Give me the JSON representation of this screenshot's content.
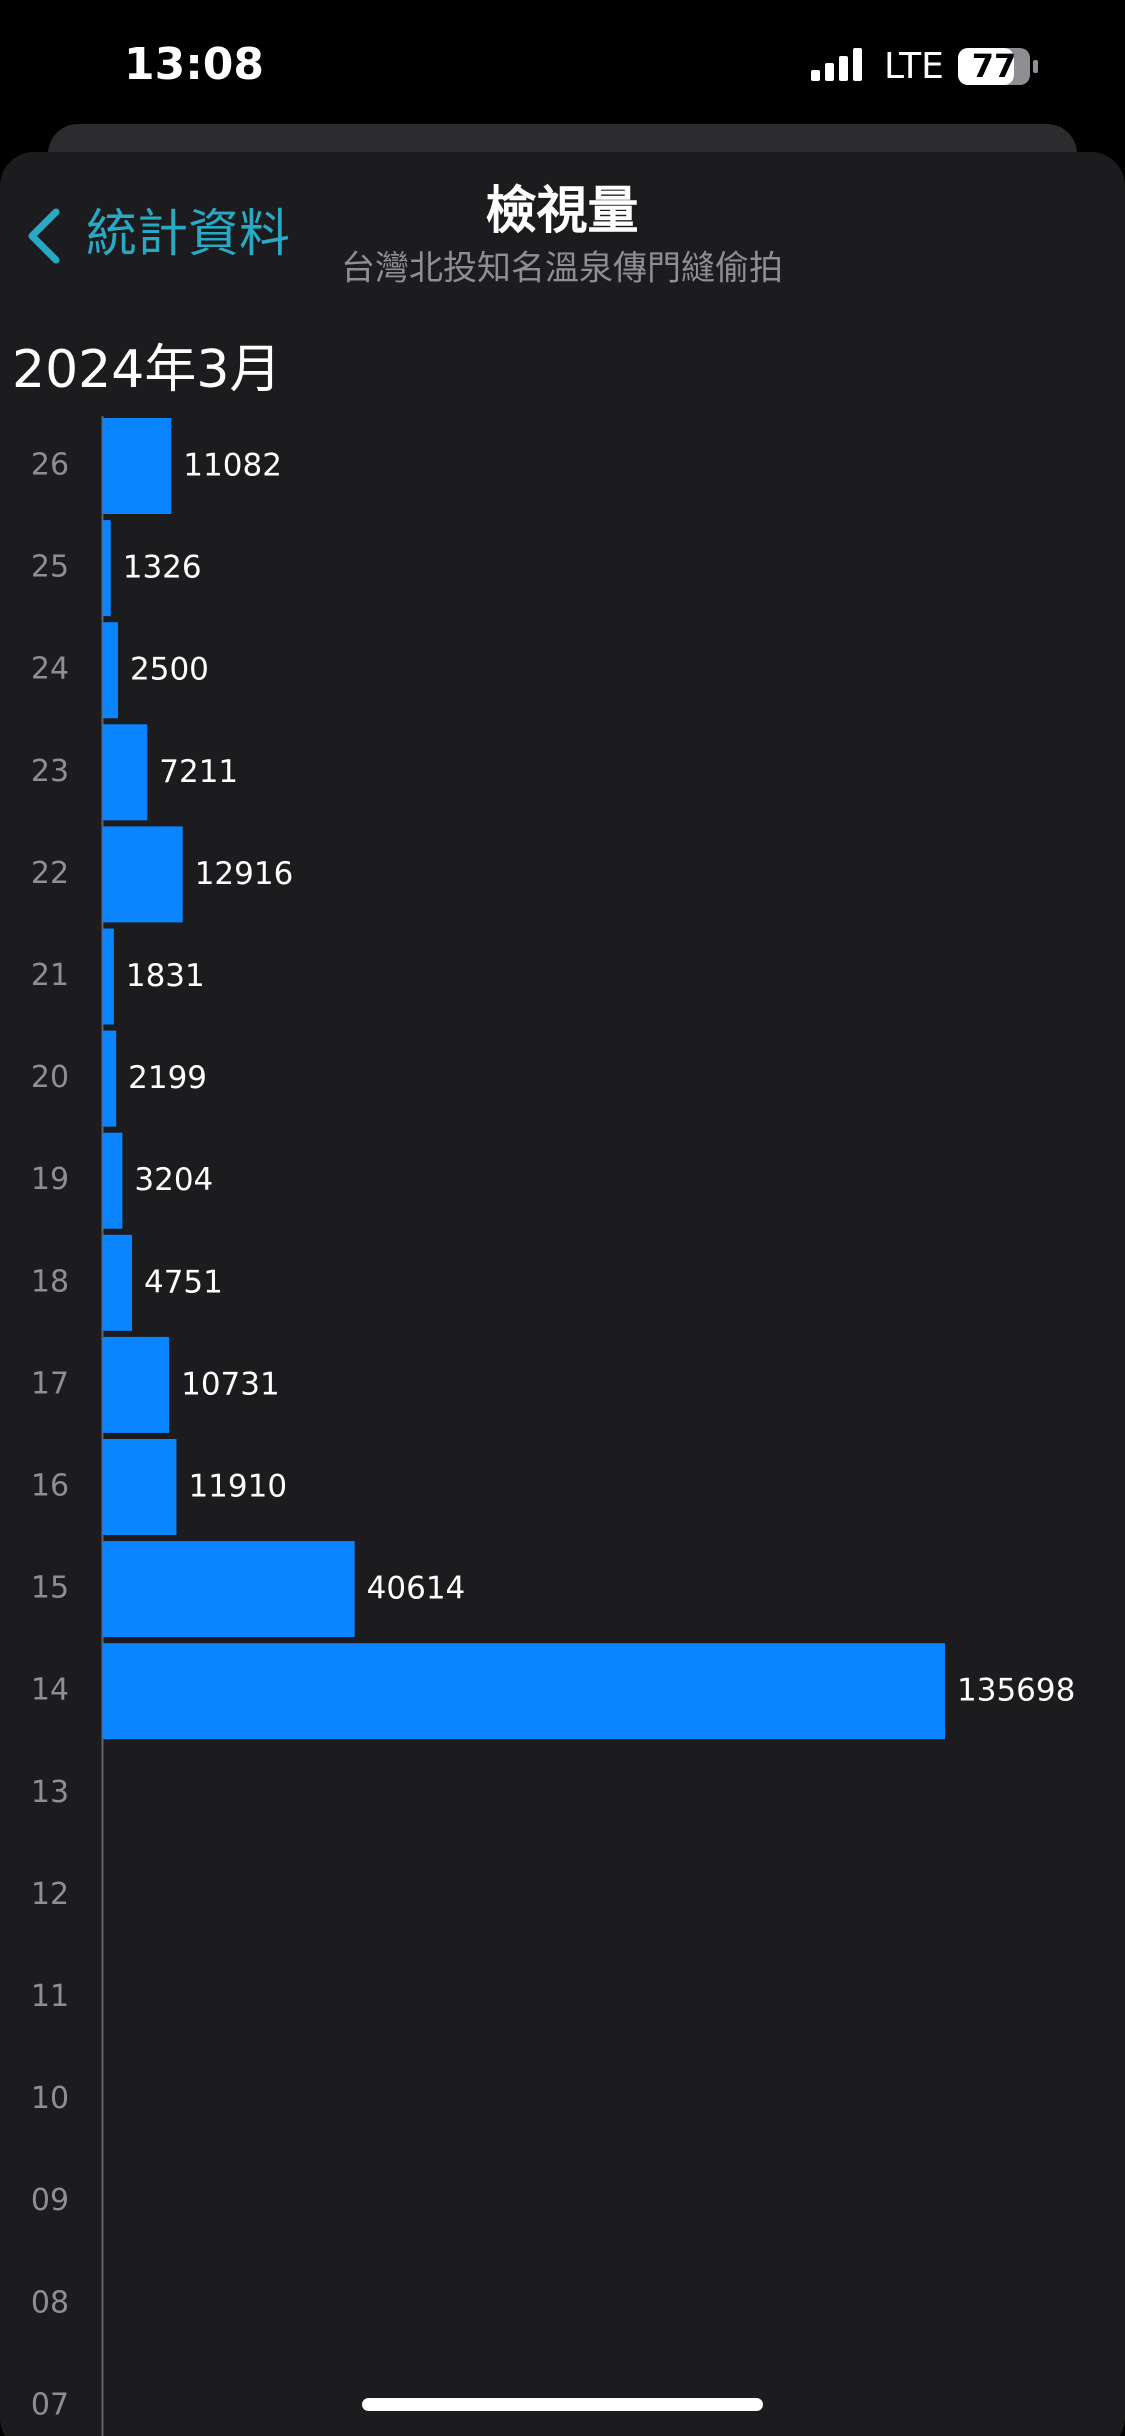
{
  "status_bar": {
    "time": "13:08",
    "network": "LTE",
    "battery": "77"
  },
  "header": {
    "back": "統計資料",
    "title": "檢視量",
    "subtitle": "台灣北投知名溫泉傳門縫偷拍"
  },
  "chart_data": {
    "type": "bar",
    "orientation": "horizontal",
    "title": "2024年3月",
    "categories": [
      "26",
      "25",
      "24",
      "23",
      "22",
      "21",
      "20",
      "19",
      "18",
      "17",
      "16",
      "15",
      "14",
      "13",
      "12",
      "11",
      "10",
      "09",
      "08",
      "07"
    ],
    "values": [
      11082,
      1326,
      2500,
      7211,
      12916,
      1831,
      2199,
      3204,
      4751,
      10731,
      11910,
      40614,
      135698,
      null,
      null,
      null,
      null,
      null,
      null,
      null
    ],
    "color": "#0a84ff"
  }
}
